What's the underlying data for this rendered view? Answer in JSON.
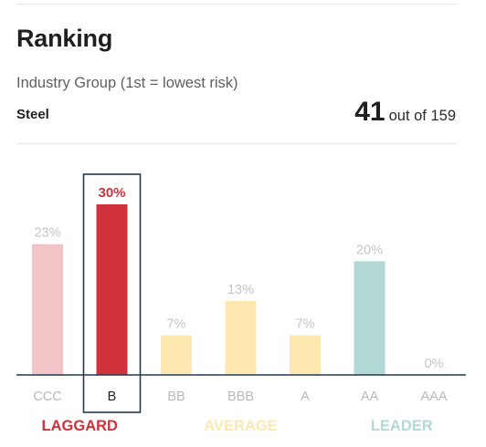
{
  "header": {
    "title": "Ranking",
    "subtitle": "Industry Group (1st = lowest risk)",
    "group_name": "Steel",
    "rank_position": "41",
    "rank_of_total": "out of 159"
  },
  "chart_data": {
    "type": "bar",
    "categories": [
      "CCC",
      "B",
      "BB",
      "BBB",
      "A",
      "AA",
      "AAA"
    ],
    "values": [
      23,
      30,
      7,
      13,
      7,
      20,
      0
    ],
    "value_labels": [
      "23%",
      "30%",
      "7%",
      "13%",
      "7%",
      "20%",
      "0%"
    ],
    "highlighted_category": "B",
    "ylim": [
      0,
      30
    ],
    "groups": [
      {
        "label": "LAGGARD",
        "categories": [
          "CCC",
          "B"
        ],
        "color": "#d0313b"
      },
      {
        "label": "AVERAGE",
        "categories": [
          "BB",
          "BBB",
          "A"
        ],
        "color": "#fde9b0"
      },
      {
        "label": "LEADER",
        "categories": [
          "AA",
          "AAA"
        ],
        "color": "#b3d9d6"
      }
    ],
    "colors": {
      "CCC": "#f3c4c7",
      "B": "#d0313b",
      "BB": "#fde9b0",
      "BBB": "#fde9b0",
      "A": "#fde9b0",
      "AA": "#b3d9d6",
      "AAA": "#b3d9d6"
    },
    "label_colors": {
      "value_default": "#c4c4c4",
      "value_highlight": "#d0313b",
      "category_default": "#b9b9b9",
      "category_highlight": "#1f1f1f",
      "axis": "#23394f",
      "highlight_box": "#23394f"
    },
    "grid": false
  }
}
